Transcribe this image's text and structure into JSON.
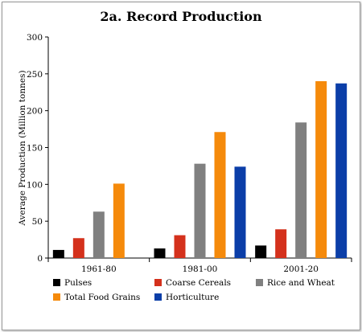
{
  "chart_data": {
    "type": "bar",
    "title": "2a. Record Production",
    "xlabel": "",
    "ylabel": "Average Production (Million tonnes)",
    "ylim": [
      0,
      300
    ],
    "yticks": [
      0,
      50,
      100,
      150,
      200,
      250,
      300
    ],
    "categories": [
      "1961-80",
      "1981-00",
      "2001-20"
    ],
    "series": [
      {
        "name": "Pulses",
        "color": "#000000",
        "values": [
          11,
          13,
          17
        ]
      },
      {
        "name": "Coarse Cereals",
        "color": "#d4311c",
        "values": [
          27,
          31,
          39
        ]
      },
      {
        "name": "Rice and Wheat",
        "color": "#808080",
        "values": [
          63,
          128,
          184
        ]
      },
      {
        "name": "Total Food Grains",
        "color": "#f58a0b",
        "values": [
          101,
          171,
          240
        ]
      },
      {
        "name": "Horticulture",
        "color": "#0b3ea8",
        "values": [
          null,
          124,
          237
        ]
      }
    ],
    "grid": false,
    "legend": "bottom"
  }
}
